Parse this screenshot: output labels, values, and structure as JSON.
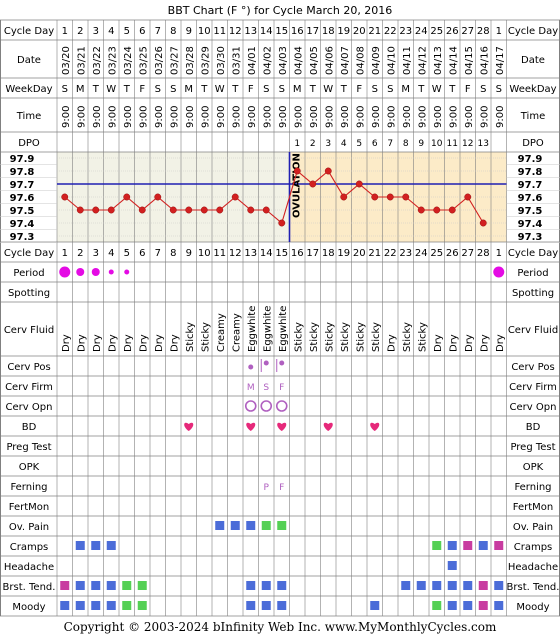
{
  "title": "BBT Chart (F °) for Cycle March 20, 2016",
  "footer": "Copyright © 2003-2024 bInfinity Web Inc.    www.MyMonthlyCycles.com",
  "colors": {
    "purple": "#5B2A86",
    "grid": "#808080",
    "ovLine": "#1F1FB2",
    "temp": "#D22020",
    "shadePre": "#F2F2E6",
    "shadePost": "#FCEBC8",
    "period": "#E40BE4",
    "cervpos": "#B060C0",
    "blue": "#4B6CD8",
    "green": "#55D055",
    "magenta": "#C83CA0",
    "heart": "#E6297A"
  },
  "row_labels": {
    "cycle_day": "Cycle Day",
    "date": "Date",
    "weekday": "WeekDay",
    "time": "Time",
    "dpo": "DPO",
    "period": "Period",
    "spotting": "Spotting",
    "cerv_fluid": "Cerv Fluid",
    "cerv_pos": "Cerv Pos",
    "cerv_firm": "Cerv Firm",
    "cerv_opn": "Cerv Opn",
    "bd": "BD",
    "preg_test": "Preg Test",
    "opk": "OPK",
    "ferning": "Ferning",
    "fertmon": "FertMon",
    "ov_pain": "Ov. Pain",
    "cramps": "Cramps",
    "headache": "Headache",
    "brst_tend": "Brst. Tend.",
    "moody": "Moody"
  },
  "ovulation_label": "OVULATION",
  "cycle_days": [
    "1",
    "2",
    "3",
    "4",
    "5",
    "6",
    "7",
    "8",
    "9",
    "10",
    "11",
    "12",
    "13",
    "14",
    "15",
    "16",
    "17",
    "18",
    "19",
    "20",
    "21",
    "22",
    "23",
    "24",
    "25",
    "26",
    "27",
    "28",
    "1"
  ],
  "dates": [
    "03/20",
    "03/21",
    "03/22",
    "03/23",
    "03/24",
    "03/25",
    "03/26",
    "03/27",
    "03/28",
    "03/29",
    "03/30",
    "03/31",
    "04/01",
    "04/02",
    "04/03",
    "04/04",
    "04/05",
    "04/06",
    "04/07",
    "04/08",
    "04/09",
    "04/10",
    "04/11",
    "04/12",
    "04/13",
    "04/14",
    "04/15",
    "04/16",
    "04/17"
  ],
  "weekdays": [
    "S",
    "M",
    "T",
    "W",
    "T",
    "F",
    "S",
    "S",
    "M",
    "T",
    "W",
    "T",
    "F",
    "S",
    "S",
    "M",
    "T",
    "W",
    "T",
    "F",
    "S",
    "S",
    "M",
    "T",
    "W",
    "T",
    "F",
    "S",
    "S"
  ],
  "times": [
    "9:00",
    "9:00",
    "9:00",
    "9:00",
    "9:00",
    "9:00",
    "9:00",
    "9:00",
    "9:00",
    "9:00",
    "9:00",
    "9:00",
    "9:00",
    "9:00",
    "9:00",
    "9:00",
    "9:00",
    "9:00",
    "9:00",
    "9:00",
    "9:00",
    "9:00",
    "9:00",
    "9:00",
    "9:00",
    "9:00",
    "9:00",
    "9:00",
    "9:00"
  ],
  "dpo": [
    "",
    "",
    "",
    "",
    "",
    "",
    "",
    "",
    "",
    "",
    "",
    "",
    "",
    "",
    "",
    "1",
    "2",
    "3",
    "4",
    "5",
    "6",
    "7",
    "8",
    "9",
    "10",
    "11",
    "12",
    "13",
    ""
  ],
  "chart_data": {
    "type": "line",
    "title": "BBT Chart (F °) for Cycle March 20, 2016",
    "x": [
      1,
      2,
      3,
      4,
      5,
      6,
      7,
      8,
      9,
      10,
      11,
      12,
      13,
      14,
      15,
      16,
      17,
      18,
      19,
      20,
      21,
      22,
      23,
      24,
      25,
      26,
      27,
      28
    ],
    "temps": [
      97.6,
      97.5,
      97.5,
      97.5,
      97.6,
      97.5,
      97.6,
      97.5,
      97.5,
      97.5,
      97.5,
      97.6,
      97.5,
      97.5,
      97.4,
      97.8,
      97.7,
      97.8,
      97.6,
      97.7,
      97.6,
      97.6,
      97.6,
      97.5,
      97.5,
      97.5,
      97.6,
      97.4
    ],
    "coverline": 97.7,
    "ovulation_day": 15,
    "ylim": [
      97.3,
      97.9
    ],
    "yticks": [
      "97.9",
      "97.8",
      "97.7",
      "97.6",
      "97.5",
      "97.4",
      "97.3"
    ]
  },
  "period": [
    "big",
    "med",
    "med",
    "small",
    "small",
    "",
    "",
    "",
    "",
    "",
    "",
    "",
    "",
    "",
    "",
    "",
    "",
    "",
    "",
    "",
    "",
    "",
    "",
    "",
    "",
    "",
    "",
    "",
    "big"
  ],
  "cerv_fluid": [
    "Dry",
    "Dry",
    "Dry",
    "Dry",
    "Dry",
    "Dry",
    "Dry",
    "Dry",
    "Sticky",
    "Sticky",
    "Creamy",
    "Creamy",
    "Eggwhite",
    "Eggwhite",
    "Eggwhite",
    "Sticky",
    "Sticky",
    "Sticky",
    "Sticky",
    "Sticky",
    "Sticky",
    "Dry",
    "Sticky",
    "Sticky",
    "Dry",
    "Dry",
    "Dry",
    "Dry",
    "Dry"
  ],
  "cerv_pos": [
    "",
    "",
    "",
    "",
    "",
    "",
    "",
    "",
    "",
    "",
    "",
    "",
    "low",
    "medium",
    "medium",
    "",
    "",
    "",
    "",
    "",
    "",
    "",
    "",
    "",
    "",
    "",
    "",
    "",
    ""
  ],
  "cerv_firm": [
    "",
    "",
    "",
    "",
    "",
    "",
    "",
    "",
    "",
    "",
    "",
    "",
    "M",
    "S",
    "F",
    "",
    "",
    "",
    "",
    "",
    "",
    "",
    "",
    "",
    "",
    "",
    "",
    "",
    ""
  ],
  "cerv_opn": [
    "",
    "",
    "",
    "",
    "",
    "",
    "",
    "",
    "",
    "",
    "",
    "",
    "o",
    "o",
    "o",
    "",
    "",
    "",
    "",
    "",
    "",
    "",
    "",
    "",
    "",
    "",
    "",
    "",
    ""
  ],
  "bd": [
    "",
    "",
    "",
    "",
    "",
    "",
    "",
    "",
    "y",
    "",
    "",
    "",
    "y",
    "",
    "y",
    "",
    "",
    "y",
    "",
    "",
    "y",
    "",
    "",
    "",
    "",
    "",
    "",
    "",
    ""
  ],
  "ferning": [
    "",
    "",
    "",
    "",
    "",
    "",
    "",
    "",
    "",
    "",
    "",
    "",
    "",
    "P",
    "F",
    "",
    "",
    "",
    "",
    "",
    "",
    "",
    "",
    "",
    "",
    "",
    "",
    "",
    ""
  ],
  "ov_pain": [
    "",
    "",
    "",
    "",
    "",
    "",
    "",
    "",
    "",
    "",
    "b",
    "b",
    "b",
    "g",
    "g",
    "",
    "",
    "",
    "",
    "",
    "",
    "",
    "",
    "",
    "",
    "",
    "",
    "",
    ""
  ],
  "cramps": [
    "",
    "b",
    "b",
    "b",
    "",
    "",
    "",
    "",
    "",
    "",
    "",
    "",
    "",
    "",
    "",
    "",
    "",
    "",
    "",
    "",
    "",
    "",
    "",
    "",
    "g",
    "b",
    "m",
    "b",
    "m"
  ],
  "headache": [
    "",
    "",
    "",
    "",
    "",
    "",
    "",
    "",
    "",
    "",
    "",
    "",
    "",
    "",
    "",
    "",
    "",
    "",
    "",
    "",
    "",
    "",
    "",
    "",
    "",
    "b",
    "",
    "",
    ""
  ],
  "brst_tend": [
    "m",
    "b",
    "b",
    "b",
    "g",
    "g",
    "",
    "",
    "",
    "",
    "",
    "",
    "b",
    "b",
    "b",
    "",
    "",
    "",
    "",
    "",
    "",
    "",
    "b",
    "b",
    "b",
    "b",
    "b",
    "m",
    "b"
  ],
  "moody": [
    "b",
    "b",
    "b",
    "b",
    "g",
    "g",
    "",
    "",
    "",
    "",
    "",
    "",
    "b",
    "b",
    "b",
    "",
    "",
    "",
    "",
    "",
    "b",
    "",
    "",
    "",
    "g",
    "b",
    "b",
    "m",
    "b"
  ]
}
